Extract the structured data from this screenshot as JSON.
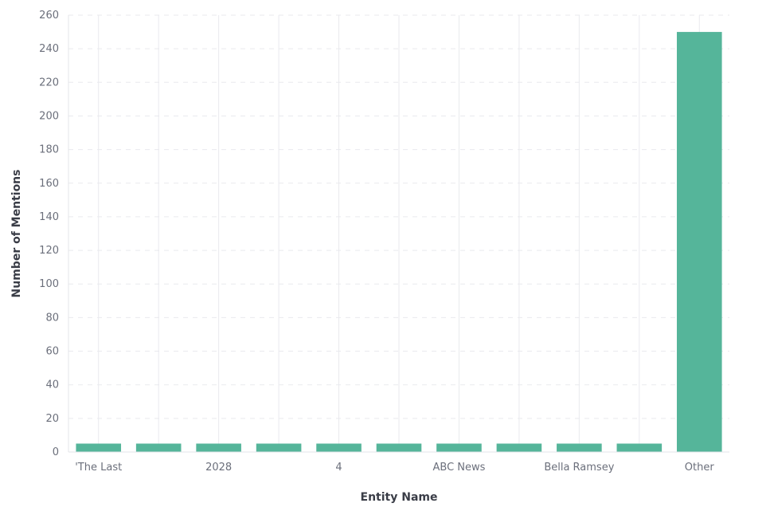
{
  "chart_data": {
    "type": "bar",
    "title": "",
    "xlabel": "Entity Name",
    "ylabel": "Number of Mentions",
    "ylim": [
      0,
      260
    ],
    "yticks": [
      0,
      20,
      40,
      60,
      80,
      100,
      120,
      140,
      160,
      180,
      200,
      220,
      240,
      260
    ],
    "categories": [
      "'The Last",
      "",
      "2028",
      "",
      "4",
      "",
      "ABC News",
      "",
      "Bella Ramsey",
      "",
      "Other"
    ],
    "values": [
      5,
      5,
      5,
      5,
      5,
      5,
      5,
      5,
      5,
      5,
      250
    ],
    "bar_color": "#55b59a",
    "grid": true,
    "grid_color": "#e9eaee"
  }
}
